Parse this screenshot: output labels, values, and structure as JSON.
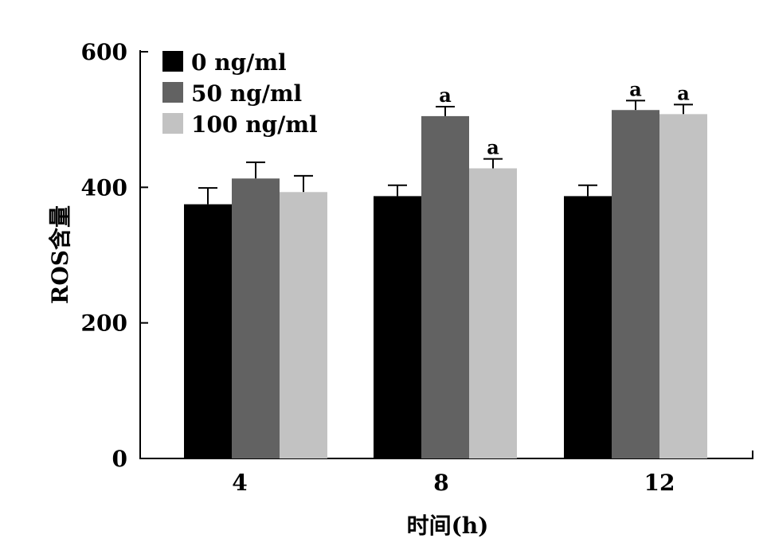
{
  "chart_data": {
    "type": "bar",
    "xlabel": "时间(h)",
    "ylabel": "ROS含量",
    "categories": [
      "4",
      "8",
      "12"
    ],
    "ylim": [
      0,
      600
    ],
    "yticks": [
      "0",
      "200",
      "400",
      "600"
    ],
    "grid": false,
    "legend_position": "top-left",
    "series": [
      {
        "name": "0 ng/ml",
        "color": "#000000",
        "values": [
          375,
          387,
          387
        ],
        "error_upper": [
          399,
          403,
          403
        ],
        "annotations": [
          "",
          "",
          ""
        ]
      },
      {
        "name": "50 ng/ml",
        "color": "#626262",
        "values": [
          413,
          505,
          514
        ],
        "error_upper": [
          437,
          519,
          528
        ],
        "annotations": [
          "",
          "a",
          "a"
        ]
      },
      {
        "name": "100 ng/ml",
        "color": "#c2c2c2",
        "values": [
          393,
          428,
          508
        ],
        "error_upper": [
          417,
          442,
          522
        ],
        "annotations": [
          "",
          "a",
          "a"
        ]
      }
    ]
  }
}
